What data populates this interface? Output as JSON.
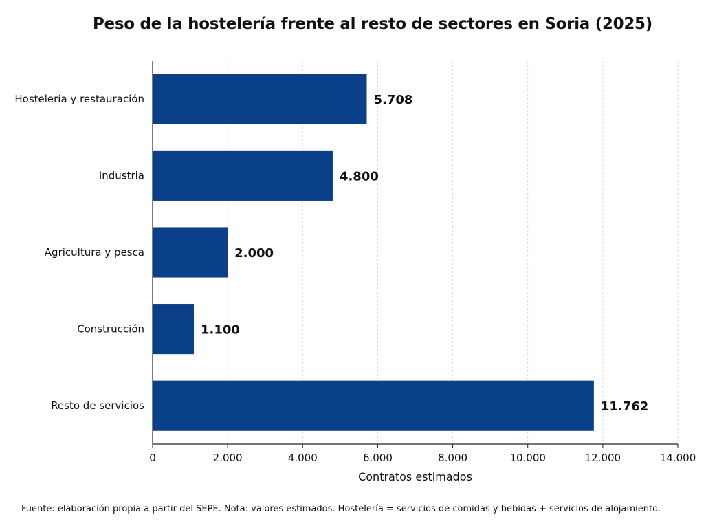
{
  "chart_data": {
    "type": "bar",
    "orientation": "horizontal",
    "title": "Peso de la hostelería frente al resto de sectores en Soria (2025)",
    "categories": [
      "Hostelería y restauración",
      "Industria",
      "Agricultura y pesca",
      "Construcción",
      "Resto de servicios"
    ],
    "values": [
      5708,
      4800,
      2000,
      1100,
      11762
    ],
    "value_labels": [
      "5.708",
      "4.800",
      "2.000",
      "1.100",
      "11.762"
    ],
    "xlabel": "Contratos estimados",
    "ylabel": "",
    "xlim": [
      0,
      14000
    ],
    "xticks": [
      0,
      2000,
      4000,
      6000,
      8000,
      10000,
      12000,
      14000
    ],
    "xtick_labels": [
      "0",
      "2.000",
      "4.000",
      "6.000",
      "8.000",
      "10.000",
      "12.000",
      "14.000"
    ],
    "grid": "vertical dashed",
    "legend": "none",
    "bar_color": "#0a3f8a"
  },
  "footnote": "Fuente: elaboración propia a partir del SEPE. Nota: valores estimados. Hostelería = servicios de comidas y bebidas + servicios de alojamiento."
}
